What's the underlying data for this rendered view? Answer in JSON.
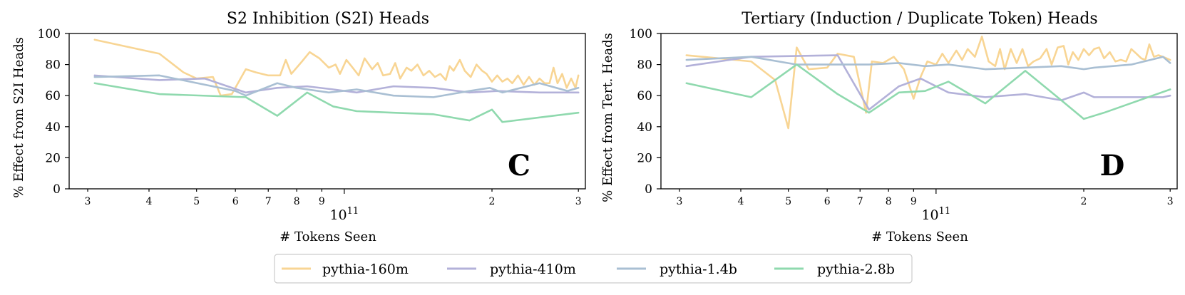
{
  "legend": [
    {
      "name": "pythia-160m",
      "color": "#f8d594"
    },
    {
      "name": "pythia-410m",
      "color": "#b3b1d9"
    },
    {
      "name": "pythia-1.4b",
      "color": "#a9bfd3"
    },
    {
      "name": "pythia-2.8b",
      "color": "#8fd9ae"
    }
  ],
  "chart_data": [
    {
      "type": "line",
      "panel_letter": "C",
      "title": "S2 Inhibition (S2I) Heads",
      "xlabel": "# Tokens Seen",
      "ylabel": "% Effect from S2I Heads",
      "xscale": "log",
      "xlim": [
        27500000000.0,
        310000000000.0
      ],
      "ylim": [
        0,
        100
      ],
      "yticks": [
        0,
        20,
        40,
        60,
        80,
        100
      ],
      "xticks": [
        {
          "value": 30000000000.0,
          "label": "3"
        },
        {
          "value": 40000000000.0,
          "label": "4"
        },
        {
          "value": 50000000000.0,
          "label": "5"
        },
        {
          "value": 60000000000.0,
          "label": "6"
        },
        {
          "value": 70000000000.0,
          "label": "7"
        },
        {
          "value": 80000000000.0,
          "label": "8"
        },
        {
          "value": 90000000000.0,
          "label": "9"
        },
        {
          "value": 200000000000.0,
          "label": "2"
        },
        {
          "value": 300000000000.0,
          "label": "3"
        }
      ],
      "major_tick": {
        "value": 100000000000.0,
        "base": "10",
        "exp": "11"
      },
      "grid": false,
      "series": [
        {
          "name": "pythia-160m",
          "color": "#f8d594",
          "points": [
            [
              31000000000.0,
              96
            ],
            [
              42000000000.0,
              87
            ],
            [
              47000000000.0,
              75
            ],
            [
              50000000000.0,
              71
            ],
            [
              54000000000.0,
              72
            ],
            [
              56000000000.0,
              60
            ],
            [
              59000000000.0,
              61
            ],
            [
              63000000000.0,
              77
            ],
            [
              66000000000.0,
              75
            ],
            [
              70000000000.0,
              73
            ],
            [
              74000000000.0,
              73
            ],
            [
              76000000000.0,
              83
            ],
            [
              78000000000.0,
              74
            ],
            [
              82000000000.0,
              82
            ],
            [
              85000000000.0,
              88
            ],
            [
              89000000000.0,
              84
            ],
            [
              93000000000.0,
              78
            ],
            [
              96000000000.0,
              80
            ],
            [
              98000000000.0,
              74
            ],
            [
              101000000000.0,
              83
            ],
            [
              104000000000.0,
              78
            ],
            [
              107000000000.0,
              73
            ],
            [
              110000000000.0,
              84
            ],
            [
              114000000000.0,
              77
            ],
            [
              117000000000.0,
              81
            ],
            [
              120000000000.0,
              73
            ],
            [
              124000000000.0,
              74
            ],
            [
              127000000000.0,
              81
            ],
            [
              130000000000.0,
              71
            ],
            [
              134000000000.0,
              78
            ],
            [
              137000000000.0,
              76
            ],
            [
              141000000000.0,
              80
            ],
            [
              145000000000.0,
              73
            ],
            [
              149000000000.0,
              76
            ],
            [
              153000000000.0,
              72
            ],
            [
              157000000000.0,
              74
            ],
            [
              161000000000.0,
              70
            ],
            [
              164000000000.0,
              79
            ],
            [
              167000000000.0,
              76
            ],
            [
              172000000000.0,
              83
            ],
            [
              176000000000.0,
              76
            ],
            [
              181000000000.0,
              72
            ],
            [
              186000000000.0,
              80
            ],
            [
              191000000000.0,
              76
            ],
            [
              195000000000.0,
              74
            ],
            [
              200000000000.0,
              69
            ],
            [
              205000000000.0,
              73
            ],
            [
              210000000000.0,
              69
            ],
            [
              215000000000.0,
              71
            ],
            [
              220000000000.0,
              68
            ],
            [
              226000000000.0,
              73
            ],
            [
              232000000000.0,
              67
            ],
            [
              238000000000.0,
              72
            ],
            [
              244000000000.0,
              67
            ],
            [
              250000000000.0,
              71
            ],
            [
              256000000000.0,
              68
            ],
            [
              262000000000.0,
              68
            ],
            [
              267000000000.0,
              78
            ],
            [
              272000000000.0,
              68
            ],
            [
              278000000000.0,
              74
            ],
            [
              284000000000.0,
              65
            ],
            [
              290000000000.0,
              71
            ],
            [
              296000000000.0,
              65
            ],
            [
              300000000000.0,
              73
            ]
          ]
        },
        {
          "name": "pythia-410m",
          "color": "#b3b1d9",
          "points": [
            [
              31000000000.0,
              73
            ],
            [
              42000000000.0,
              70
            ],
            [
              52000000000.0,
              71
            ],
            [
              63000000000.0,
              62
            ],
            [
              73000000000.0,
              65
            ],
            [
              84000000000.0,
              66
            ],
            [
              95000000000.0,
              64
            ],
            [
              106000000000.0,
              62
            ],
            [
              126000000000.0,
              66
            ],
            [
              152000000000.0,
              65
            ],
            [
              180000000000.0,
              62
            ],
            [
              205000000000.0,
              63
            ],
            [
              250000000000.0,
              62
            ],
            [
              300000000000.0,
              62
            ]
          ]
        },
        {
          "name": "pythia-1.4b",
          "color": "#a9bfd3",
          "points": [
            [
              31000000000.0,
              72
            ],
            [
              42000000000.0,
              73
            ],
            [
              60000000000.0,
              63
            ],
            [
              63000000000.0,
              60
            ],
            [
              73000000000.0,
              68
            ],
            [
              80000000000.0,
              65
            ],
            [
              93000000000.0,
              62
            ],
            [
              106000000000.0,
              64
            ],
            [
              126000000000.0,
              60
            ],
            [
              152000000000.0,
              59
            ],
            [
              180000000000.0,
              63
            ],
            [
              198000000000.0,
              65
            ],
            [
              210000000000.0,
              62
            ],
            [
              250000000000.0,
              68
            ],
            [
              285000000000.0,
              63
            ],
            [
              300000000000.0,
              65
            ]
          ]
        },
        {
          "name": "pythia-2.8b",
          "color": "#8fd9ae",
          "points": [
            [
              31000000000.0,
              68
            ],
            [
              42000000000.0,
              61
            ],
            [
              63000000000.0,
              59
            ],
            [
              73000000000.0,
              47
            ],
            [
              84000000000.0,
              62
            ],
            [
              95000000000.0,
              53
            ],
            [
              106000000000.0,
              50
            ],
            [
              126000000000.0,
              49
            ],
            [
              152000000000.0,
              48
            ],
            [
              180000000000.0,
              44
            ],
            [
              200000000000.0,
              51
            ],
            [
              210000000000.0,
              43
            ],
            [
              300000000000.0,
              49
            ]
          ]
        }
      ]
    },
    {
      "type": "line",
      "panel_letter": "D",
      "title": "Tertiary (Induction / Duplicate Token) Heads",
      "xlabel": "# Tokens Seen",
      "ylabel": "% Effect from Tert. Heads",
      "xscale": "log",
      "xlim": [
        27500000000.0,
        310000000000.0
      ],
      "ylim": [
        0,
        100
      ],
      "yticks": [
        0,
        20,
        40,
        60,
        80,
        100
      ],
      "xticks": [
        {
          "value": 30000000000.0,
          "label": "3"
        },
        {
          "value": 40000000000.0,
          "label": "4"
        },
        {
          "value": 50000000000.0,
          "label": "5"
        },
        {
          "value": 60000000000.0,
          "label": "6"
        },
        {
          "value": 70000000000.0,
          "label": "7"
        },
        {
          "value": 80000000000.0,
          "label": "8"
        },
        {
          "value": 90000000000.0,
          "label": "9"
        },
        {
          "value": 200000000000.0,
          "label": "2"
        },
        {
          "value": 300000000000.0,
          "label": "3"
        }
      ],
      "major_tick": {
        "value": 100000000000.0,
        "base": "10",
        "exp": "11"
      },
      "grid": false,
      "series": [
        {
          "name": "pythia-160m",
          "color": "#f8d594",
          "points": [
            [
              31000000000.0,
              86
            ],
            [
              42000000000.0,
              82
            ],
            [
              47000000000.0,
              70
            ],
            [
              50000000000.0,
              39
            ],
            [
              52000000000.0,
              91
            ],
            [
              55000000000.0,
              77
            ],
            [
              60000000000.0,
              78
            ],
            [
              63000000000.0,
              87
            ],
            [
              68000000000.0,
              85
            ],
            [
              72000000000.0,
              49
            ],
            [
              74000000000.0,
              82
            ],
            [
              78000000000.0,
              81
            ],
            [
              82000000000.0,
              85
            ],
            [
              86000000000.0,
              77
            ],
            [
              90000000000.0,
              58
            ],
            [
              93000000000.0,
              72
            ],
            [
              96000000000.0,
              82
            ],
            [
              100000000000.0,
              80
            ],
            [
              103000000000.0,
              87
            ],
            [
              106000000000.0,
              81
            ],
            [
              110000000000.0,
              89
            ],
            [
              113000000000.0,
              83
            ],
            [
              116000000000.0,
              90
            ],
            [
              120000000000.0,
              85
            ],
            [
              124000000000.0,
              98
            ],
            [
              128000000000.0,
              82
            ],
            [
              132000000000.0,
              79
            ],
            [
              135000000000.0,
              90
            ],
            [
              138000000000.0,
              77
            ],
            [
              142000000000.0,
              90
            ],
            [
              146000000000.0,
              81
            ],
            [
              150000000000.0,
              90
            ],
            [
              154000000000.0,
              79
            ],
            [
              158000000000.0,
              82
            ],
            [
              163000000000.0,
              84
            ],
            [
              168000000000.0,
              90
            ],
            [
              172000000000.0,
              80
            ],
            [
              177000000000.0,
              91
            ],
            [
              182000000000.0,
              92
            ],
            [
              186000000000.0,
              80
            ],
            [
              190000000000.0,
              88
            ],
            [
              195000000000.0,
              83
            ],
            [
              200000000000.0,
              90
            ],
            [
              205000000000.0,
              86
            ],
            [
              210000000000.0,
              90
            ],
            [
              215000000000.0,
              91
            ],
            [
              220000000000.0,
              84
            ],
            [
              226000000000.0,
              88
            ],
            [
              232000000000.0,
              82
            ],
            [
              238000000000.0,
              83
            ],
            [
              244000000000.0,
              82
            ],
            [
              250000000000.0,
              90
            ],
            [
              256000000000.0,
              87
            ],
            [
              262000000000.0,
              84
            ],
            [
              267000000000.0,
              83
            ],
            [
              272000000000.0,
              93
            ],
            [
              278000000000.0,
              85
            ],
            [
              284000000000.0,
              86
            ],
            [
              290000000000.0,
              85
            ],
            [
              300000000000.0,
              83
            ]
          ]
        },
        {
          "name": "pythia-410m",
          "color": "#b3b1d9",
          "points": [
            [
              31000000000.0,
              79
            ],
            [
              42000000000.0,
              85
            ],
            [
              63000000000.0,
              86
            ],
            [
              73000000000.0,
              51
            ],
            [
              84000000000.0,
              66
            ],
            [
              93000000000.0,
              71
            ],
            [
              106000000000.0,
              62
            ],
            [
              126000000000.0,
              59
            ],
            [
              152000000000.0,
              61
            ],
            [
              180000000000.0,
              57
            ],
            [
              200000000000.0,
              62
            ],
            [
              210000000000.0,
              59
            ],
            [
              250000000000.0,
              59
            ],
            [
              290000000000.0,
              59
            ],
            [
              300000000000.0,
              60
            ]
          ]
        },
        {
          "name": "pythia-1.4b",
          "color": "#a9bfd3",
          "points": [
            [
              31000000000.0,
              83
            ],
            [
              42000000000.0,
              85
            ],
            [
              52000000000.0,
              80
            ],
            [
              73000000000.0,
              80
            ],
            [
              84000000000.0,
              81
            ],
            [
              95000000000.0,
              79
            ],
            [
              106000000000.0,
              80
            ],
            [
              126000000000.0,
              77
            ],
            [
              152000000000.0,
              78
            ],
            [
              180000000000.0,
              79
            ],
            [
              200000000000.0,
              77
            ],
            [
              210000000000.0,
              78
            ],
            [
              250000000000.0,
              80
            ],
            [
              290000000000.0,
              85
            ],
            [
              300000000000.0,
              81
            ]
          ]
        },
        {
          "name": "pythia-2.8b",
          "color": "#8fd9ae",
          "points": [
            [
              31000000000.0,
              68
            ],
            [
              42000000000.0,
              59
            ],
            [
              52000000000.0,
              80
            ],
            [
              63000000000.0,
              61
            ],
            [
              73000000000.0,
              49
            ],
            [
              84000000000.0,
              62
            ],
            [
              95000000000.0,
              63
            ],
            [
              106000000000.0,
              69
            ],
            [
              126000000000.0,
              55
            ],
            [
              152000000000.0,
              76
            ],
            [
              180000000000.0,
              57
            ],
            [
              200000000000.0,
              45
            ],
            [
              220000000000.0,
              49
            ],
            [
              300000000000.0,
              64
            ]
          ]
        }
      ]
    }
  ]
}
